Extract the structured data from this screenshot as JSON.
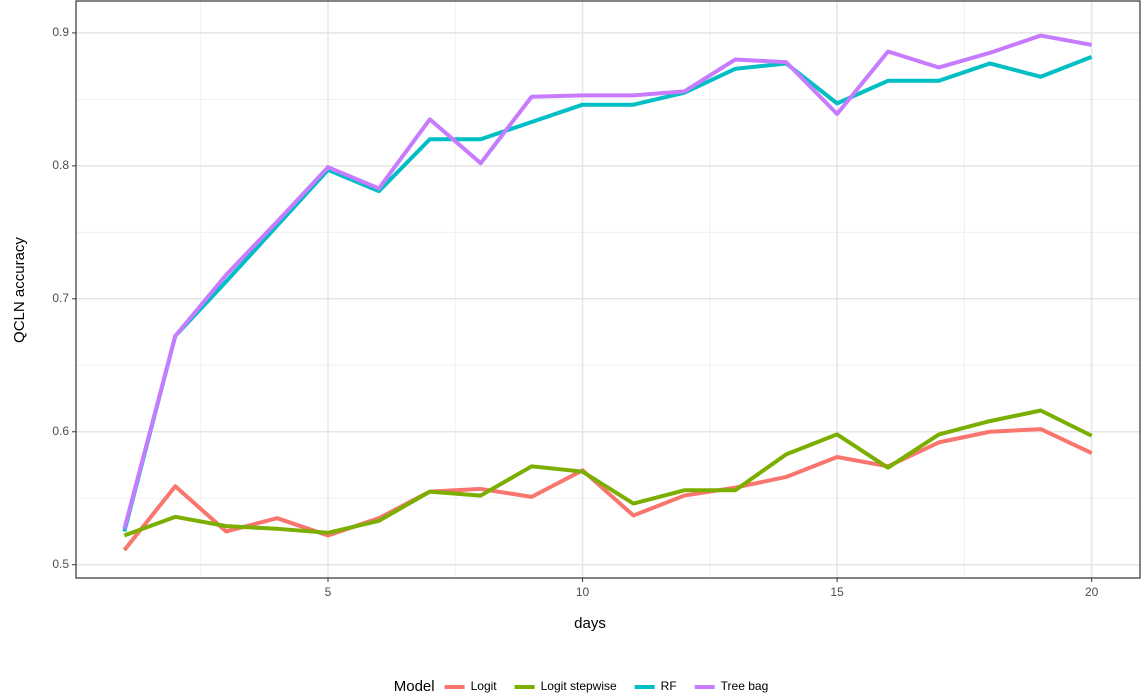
{
  "chart_data": {
    "type": "line",
    "x_label": "days",
    "y_label": "QCLN accuracy",
    "legend_title": "Model",
    "legend_position": "bottom",
    "x": [
      1,
      2,
      3,
      4,
      5,
      6,
      7,
      8,
      9,
      10,
      11,
      12,
      13,
      14,
      15,
      16,
      17,
      18,
      19,
      20
    ],
    "xlim": [
      0.05,
      20.95
    ],
    "xticks": [
      5,
      10,
      15,
      20
    ],
    "x_minor_ticks": [
      2.5,
      7.5,
      12.5,
      17.5
    ],
    "ylim": [
      0.49,
      0.924
    ],
    "yticks": [
      0.5,
      0.6,
      0.7,
      0.8,
      0.9
    ],
    "y_minor_ticks": [
      0.55,
      0.65,
      0.75,
      0.85
    ],
    "grid": true,
    "series": [
      {
        "name": "Logit",
        "color": "#F8766D",
        "values": [
          0.511,
          0.559,
          0.525,
          0.535,
          0.522,
          0.535,
          0.555,
          0.557,
          0.551,
          0.571,
          0.537,
          0.552,
          0.558,
          0.566,
          0.581,
          0.574,
          0.592,
          0.6,
          0.602,
          0.584
        ]
      },
      {
        "name": "Logit stepwise",
        "color": "#7CAE00",
        "values": [
          0.522,
          0.536,
          0.529,
          0.527,
          0.524,
          0.533,
          0.555,
          0.552,
          0.574,
          0.57,
          0.546,
          0.556,
          0.556,
          0.583,
          0.598,
          0.573,
          0.598,
          0.608,
          0.616,
          0.597
        ]
      },
      {
        "name": "RF",
        "color": "#00BFC4",
        "values": [
          0.525,
          0.672,
          0.713,
          0.755,
          0.797,
          0.781,
          0.82,
          0.82,
          0.833,
          0.846,
          0.846,
          0.855,
          0.873,
          0.877,
          0.847,
          0.864,
          0.864,
          0.877,
          0.867,
          0.882
        ]
      },
      {
        "name": "Tree bag",
        "color": "#C77CFF",
        "values": [
          0.527,
          0.672,
          0.718,
          0.758,
          0.799,
          0.783,
          0.835,
          0.802,
          0.852,
          0.853,
          0.853,
          0.856,
          0.88,
          0.878,
          0.839,
          0.886,
          0.874,
          0.885,
          0.898,
          0.891
        ]
      }
    ]
  }
}
